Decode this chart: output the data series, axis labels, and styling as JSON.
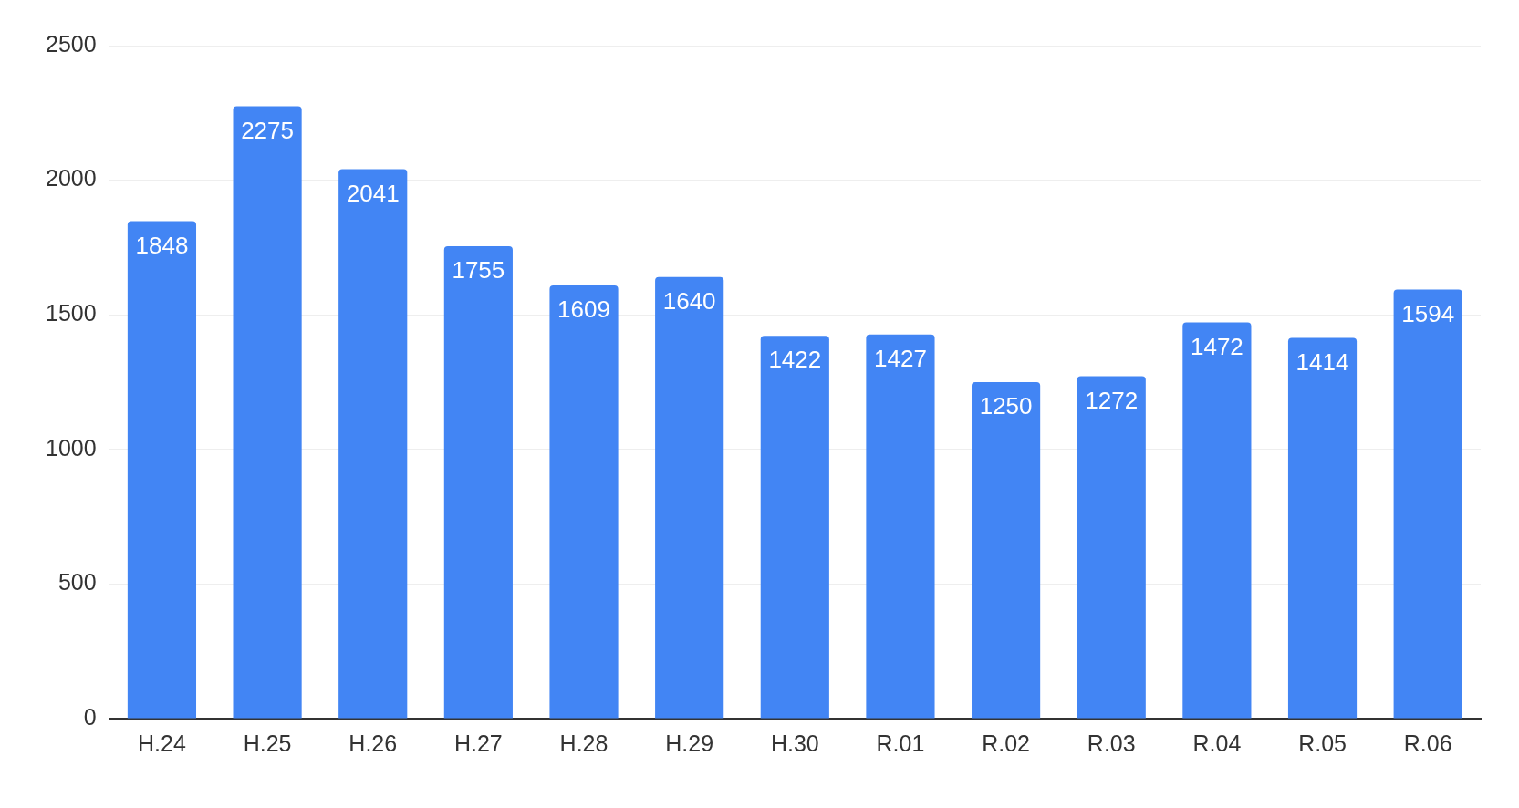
{
  "chart_data": {
    "type": "bar",
    "categories": [
      "H.24",
      "H.25",
      "H.26",
      "H.27",
      "H.28",
      "H.29",
      "H.30",
      "R.01",
      "R.02",
      "R.03",
      "R.04",
      "R.05",
      "R.06"
    ],
    "values": [
      1848,
      2275,
      2041,
      1755,
      1609,
      1640,
      1422,
      1427,
      1250,
      1272,
      1472,
      1414,
      1594
    ],
    "color": "#4285f4",
    "ylim": [
      0,
      2500
    ],
    "yticks": [
      0,
      500,
      1000,
      1500,
      2000,
      2500
    ],
    "grid": "y",
    "data_labels": true
  }
}
